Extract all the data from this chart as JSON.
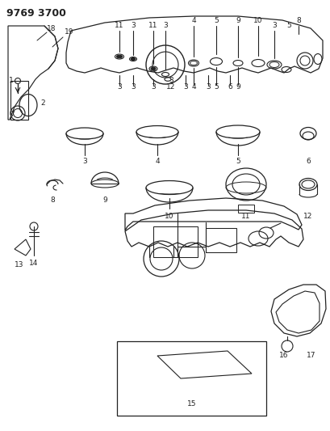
{
  "title": "9769 3700",
  "bg_color": "#ffffff",
  "lc": "#222222",
  "lw": 0.8,
  "fs": 6.5,
  "fs_title": 9.0,
  "fig_w": 4.1,
  "fig_h": 5.33,
  "dpi": 100
}
